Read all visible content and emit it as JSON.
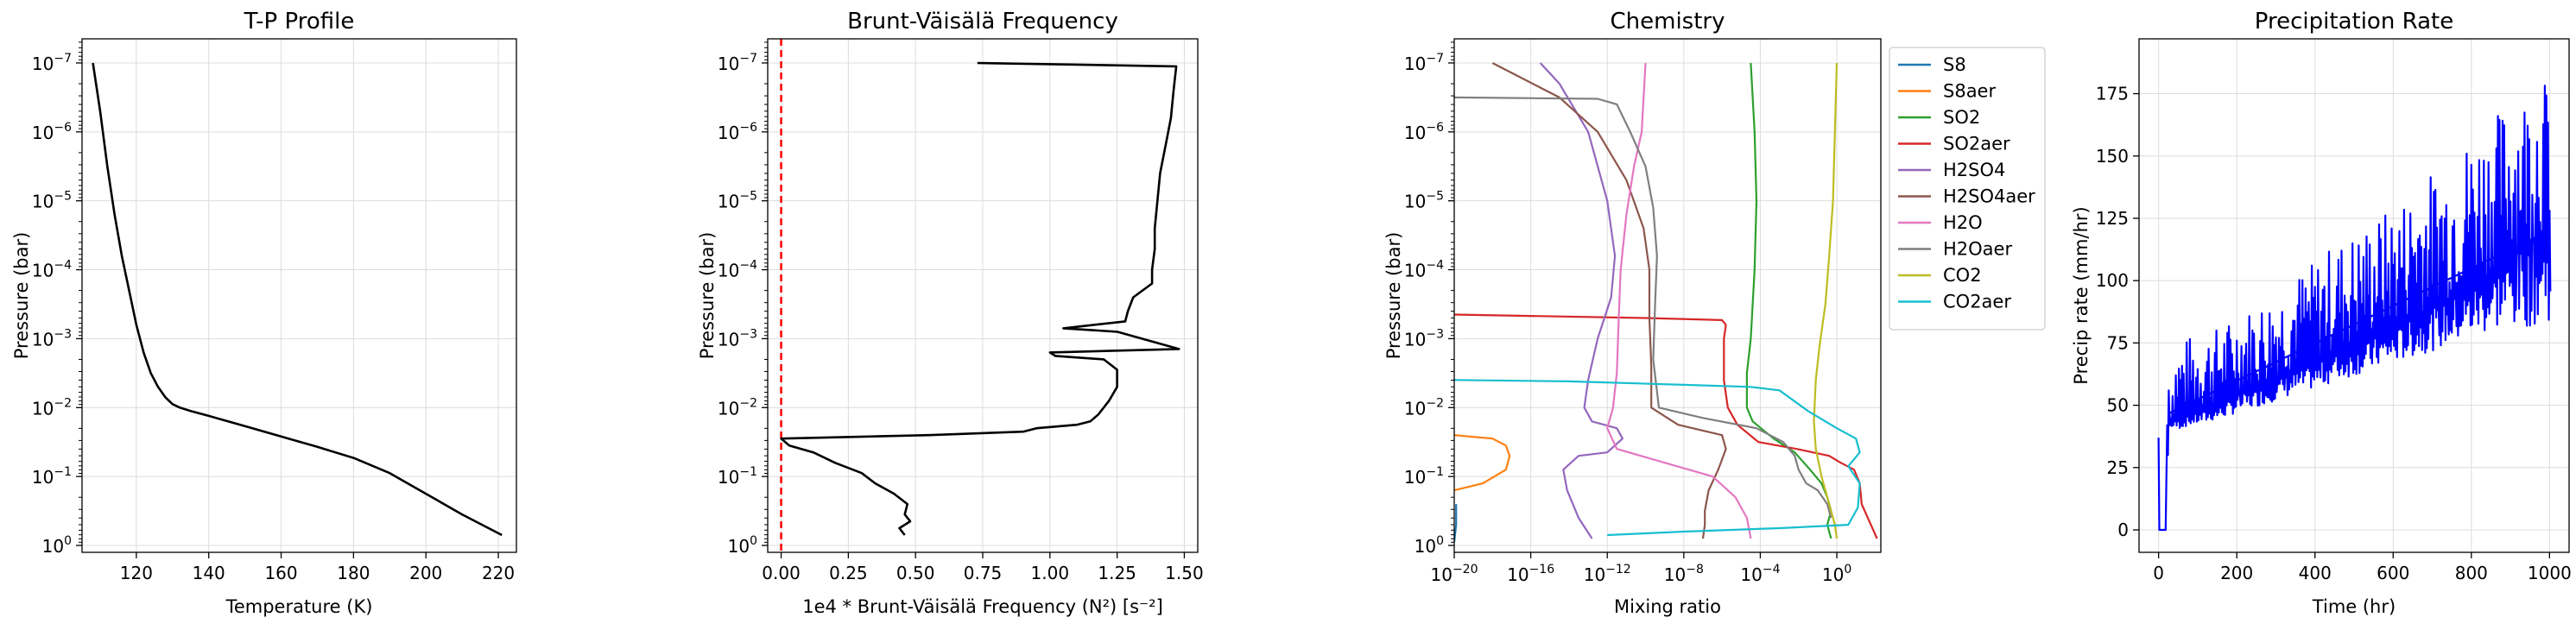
{
  "figure": {
    "background": "#ffffff",
    "grid_color": "#dcdcdc",
    "axis_color": "#000000"
  },
  "chart_data": [
    {
      "type": "line",
      "title": "T-P Profile",
      "xlabel": "Temperature (K)",
      "ylabel": "Pressure (bar)",
      "xscale": "linear",
      "yscale": "log",
      "y_inverted": true,
      "grid": true,
      "xlim": [
        105,
        225
      ],
      "ylim_log10": [
        0.1,
        -7.35
      ],
      "xticks": [
        {
          "v": 120,
          "label": "120"
        },
        {
          "v": 140,
          "label": "140"
        },
        {
          "v": 160,
          "label": "160"
        },
        {
          "v": 180,
          "label": "180"
        },
        {
          "v": 200,
          "label": "200"
        },
        {
          "v": 220,
          "label": "220"
        }
      ],
      "yticks": [
        {
          "v": 0,
          "base": "10",
          "exp": "0"
        },
        {
          "v": -1,
          "base": "10",
          "exp": "−1"
        },
        {
          "v": -2,
          "base": "10",
          "exp": "−2"
        },
        {
          "v": -3,
          "base": "10",
          "exp": "−3"
        },
        {
          "v": -4,
          "base": "10",
          "exp": "−4"
        },
        {
          "v": -5,
          "base": "10",
          "exp": "−5"
        },
        {
          "v": -6,
          "base": "10",
          "exp": "−6"
        },
        {
          "v": -7,
          "base": "10",
          "exp": "−7"
        }
      ],
      "series": [
        {
          "color": "#000000",
          "width": 2.6,
          "x": [
            108,
            110,
            112,
            114,
            116,
            118,
            120,
            122,
            124,
            126,
            128,
            130,
            132,
            135,
            140,
            150,
            160,
            170,
            180,
            190,
            200,
            210,
            221
          ],
          "y": [
            -7,
            -6.3,
            -5.5,
            -4.8,
            -4.2,
            -3.7,
            -3.2,
            -2.8,
            -2.5,
            -2.3,
            -2.15,
            -2.05,
            -2,
            -1.95,
            -1.88,
            -1.73,
            -1.58,
            -1.43,
            -1.27,
            -1.05,
            -0.75,
            -0.45,
            -0.15
          ]
        }
      ]
    },
    {
      "type": "line",
      "title": "Brunt-Väisälä Frequency",
      "xlabel": "1e4 * Brunt-Väisälä Frequency (N²) [s⁻²]",
      "ylabel": "Pressure (bar)",
      "xscale": "linear",
      "yscale": "log",
      "y_inverted": true,
      "grid": true,
      "xlim": [
        -0.05,
        1.55
      ],
      "ylim_log10": [
        0.1,
        -7.35
      ],
      "vline": {
        "x": 0,
        "color": "#ff0000",
        "dash": "8,5",
        "width": 2.5
      },
      "xticks": [
        {
          "v": 0,
          "label": "0.00"
        },
        {
          "v": 0.25,
          "label": "0.25"
        },
        {
          "v": 0.5,
          "label": "0.50"
        },
        {
          "v": 0.75,
          "label": "0.75"
        },
        {
          "v": 1.0,
          "label": "1.00"
        },
        {
          "v": 1.25,
          "label": "1.25"
        },
        {
          "v": 1.5,
          "label": "1.50"
        }
      ],
      "yticks": [
        {
          "v": 0,
          "base": "10",
          "exp": "0"
        },
        {
          "v": -1,
          "base": "10",
          "exp": "−1"
        },
        {
          "v": -2,
          "base": "10",
          "exp": "−2"
        },
        {
          "v": -3,
          "base": "10",
          "exp": "−3"
        },
        {
          "v": -4,
          "base": "10",
          "exp": "−4"
        },
        {
          "v": -5,
          "base": "10",
          "exp": "−5"
        },
        {
          "v": -6,
          "base": "10",
          "exp": "−6"
        },
        {
          "v": -7,
          "base": "10",
          "exp": "−7"
        }
      ],
      "series": [
        {
          "color": "#000000",
          "width": 2.6,
          "x": [
            0.73,
            1.47,
            1.46,
            1.45,
            1.43,
            1.41,
            1.4,
            1.39,
            1.39,
            1.38,
            1.38,
            1.31,
            1.29,
            1.28,
            1.05,
            1.25,
            1.48,
            1.0,
            1.02,
            1.2,
            1.25,
            1.25,
            1.22,
            1.18,
            1.15,
            1.1,
            0.95,
            0.9,
            0.55,
            0.0,
            0.03,
            0.12,
            0.2,
            0.3,
            0.35,
            0.42,
            0.47,
            0.46,
            0.48,
            0.44,
            0.46
          ],
          "y": [
            -7,
            -6.95,
            -6.6,
            -6.2,
            -5.8,
            -5.4,
            -5.0,
            -4.6,
            -4.3,
            -4.0,
            -3.8,
            -3.6,
            -3.4,
            -3.25,
            -3.15,
            -3.1,
            -2.85,
            -2.8,
            -2.75,
            -2.7,
            -2.55,
            -2.3,
            -2.1,
            -1.9,
            -1.8,
            -1.75,
            -1.7,
            -1.65,
            -1.6,
            -1.55,
            -1.45,
            -1.35,
            -1.2,
            -1.05,
            -0.9,
            -0.75,
            -0.6,
            -0.45,
            -0.35,
            -0.25,
            -0.15
          ]
        }
      ]
    },
    {
      "type": "line",
      "title": "Chemistry",
      "xlabel": "Mixing ratio",
      "ylabel": "Pressure (bar)",
      "xscale": "log",
      "yscale": "log",
      "y_inverted": true,
      "grid": true,
      "legend": "outside-right",
      "xlim_log10": [
        -20,
        2.3
      ],
      "ylim_log10": [
        0.1,
        -7.35
      ],
      "xticks": [
        {
          "v": -20,
          "base": "10",
          "exp": "−20"
        },
        {
          "v": -16,
          "base": "10",
          "exp": "−16"
        },
        {
          "v": -12,
          "base": "10",
          "exp": "−12"
        },
        {
          "v": -8,
          "base": "10",
          "exp": "−8"
        },
        {
          "v": -4,
          "base": "10",
          "exp": "−4"
        },
        {
          "v": 0,
          "base": "10",
          "exp": "0"
        }
      ],
      "yticks": [
        {
          "v": 0,
          "base": "10",
          "exp": "0"
        },
        {
          "v": -1,
          "base": "10",
          "exp": "−1"
        },
        {
          "v": -2,
          "base": "10",
          "exp": "−2"
        },
        {
          "v": -3,
          "base": "10",
          "exp": "−3"
        },
        {
          "v": -4,
          "base": "10",
          "exp": "−4"
        },
        {
          "v": -5,
          "base": "10",
          "exp": "−5"
        },
        {
          "v": -6,
          "base": "10",
          "exp": "−6"
        },
        {
          "v": -7,
          "base": "10",
          "exp": "−7"
        }
      ],
      "series": [
        {
          "name": "S8",
          "color": "#1f77b4",
          "x": [
            -20,
            -19.9,
            -19.9
          ],
          "y": [
            -0.05,
            -0.3,
            -0.6
          ]
        },
        {
          "name": "S8aer",
          "color": "#ff7f0e",
          "x": [
            -20,
            -18,
            -17.3,
            -17.1,
            -17.3,
            -18.5,
            -20
          ],
          "y": [
            -1.6,
            -1.55,
            -1.45,
            -1.3,
            -1.1,
            -0.9,
            -0.8
          ]
        },
        {
          "name": "SO2",
          "color": "#2ca02c",
          "x": [
            -4.5,
            -4.3,
            -4.2,
            -4.3,
            -4.5,
            -4.7,
            -4.7,
            -4.4,
            -3.3,
            -2.2,
            -1.4,
            -0.8,
            -0.5,
            -0.3,
            -0.5,
            -0.3
          ],
          "y": [
            -7,
            -6,
            -5,
            -4,
            -3,
            -2.5,
            -2,
            -1.8,
            -1.55,
            -1.35,
            -1.1,
            -0.9,
            -0.7,
            -0.5,
            -0.3,
            -0.1
          ]
        },
        {
          "name": "SO2aer",
          "color": "#d62728",
          "x": [
            -20,
            -10,
            -6,
            -5.8,
            -5.9,
            -5.9,
            -5.7,
            -5.2,
            -4.1,
            -2.1,
            -0.4,
            0.2,
            0.9,
            1.2,
            1.3,
            1.7,
            2.1
          ],
          "y": [
            -3.35,
            -3.3,
            -3.27,
            -3.2,
            -3,
            -2.4,
            -2.0,
            -1.75,
            -1.5,
            -1.4,
            -1.3,
            -1.2,
            -1.1,
            -0.9,
            -0.6,
            -0.35,
            -0.1
          ]
        },
        {
          "name": "H2SO4",
          "color": "#9467bd",
          "x": [
            -15.5,
            -14.5,
            -13,
            -12,
            -11.6,
            -11.8,
            -12.5,
            -13,
            -13.2,
            -12.8,
            -11.5,
            -11.2,
            -12,
            -13.5,
            -14.3,
            -14.1,
            -13.5,
            -12.8
          ],
          "y": [
            -7,
            -6.7,
            -6,
            -5,
            -4.2,
            -3.6,
            -3,
            -2.4,
            -2.0,
            -1.8,
            -1.7,
            -1.55,
            -1.35,
            -1.3,
            -1.1,
            -0.8,
            -0.4,
            -0.1
          ]
        },
        {
          "name": "H2SO4aer",
          "color": "#8c564b",
          "x": [
            -18,
            -14.5,
            -12.5,
            -11,
            -10.1,
            -9.8,
            -9.8,
            -9.7,
            -9.7,
            -8.3,
            -6,
            -5.8,
            -6.2,
            -6.7,
            -6.9,
            -6.9,
            -7
          ],
          "y": [
            -7,
            -6.5,
            -6,
            -5.3,
            -4.6,
            -4,
            -3.3,
            -2.6,
            -2.0,
            -1.75,
            -1.6,
            -1.4,
            -1.1,
            -0.8,
            -0.5,
            -0.3,
            -0.1
          ]
        },
        {
          "name": "H2O",
          "color": "#e377c2",
          "x": [
            -10,
            -10.1,
            -10.2,
            -10.6,
            -11,
            -11.3,
            -11.4,
            -11.5,
            -11.7,
            -12,
            -11.5,
            -9,
            -6.5,
            -5.3,
            -4.7,
            -4.5
          ],
          "y": [
            -7,
            -6.5,
            -6,
            -5.5,
            -4.8,
            -4,
            -3.3,
            -2.5,
            -2.0,
            -1.7,
            -1.4,
            -1.2,
            -1.0,
            -0.7,
            -0.4,
            -0.1
          ]
        },
        {
          "name": "H2Oaer",
          "color": "#7f7f7f",
          "x": [
            -20,
            -12.5,
            -11.5,
            -10.8,
            -10,
            -9.6,
            -9.4,
            -9.5,
            -9.6,
            -9.3,
            -7,
            -4.2,
            -2.8,
            -2.2,
            -2.0,
            -1.6,
            -1.0,
            -0.5,
            -0.3
          ],
          "y": [
            -6.5,
            -6.48,
            -6.4,
            -6.0,
            -5.5,
            -4.9,
            -4.2,
            -3.5,
            -2.7,
            -2.0,
            -1.85,
            -1.7,
            -1.5,
            -1.3,
            -1.1,
            -0.9,
            -0.8,
            -0.6,
            -0.4
          ]
        },
        {
          "name": "CO2",
          "color": "#bcbd22",
          "x": [
            0,
            -0.1,
            -0.2,
            -0.4,
            -0.6,
            -0.9,
            -1.1,
            -1.2,
            -1.1,
            -0.8,
            -0.4,
            -0.1,
            0
          ],
          "y": [
            -7,
            -6,
            -5,
            -4.2,
            -3.5,
            -2.9,
            -2.4,
            -1.8,
            -1.4,
            -1.0,
            -0.6,
            -0.3,
            -0.1
          ]
        },
        {
          "name": "CO2aer",
          "color": "#17becf",
          "x": [
            -20,
            -14,
            -8,
            -4.5,
            -3,
            -1.5,
            0,
            1.0,
            1.2,
            0.6,
            1.2,
            1.1,
            0.6,
            -3,
            -8,
            -12
          ],
          "y": [
            -2.4,
            -2.38,
            -2.33,
            -2.3,
            -2.25,
            -1.95,
            -1.7,
            -1.55,
            -1.35,
            -1.15,
            -0.9,
            -0.55,
            -0.3,
            -0.25,
            -0.2,
            -0.15
          ]
        }
      ]
    },
    {
      "type": "line",
      "title": "Precipitation Rate",
      "xlabel": "Time (hr)",
      "ylabel": "Precip rate (mm/hr)",
      "xscale": "linear",
      "yscale": "linear",
      "grid": true,
      "xlim": [
        -50,
        1050
      ],
      "ylim": [
        -9,
        197
      ],
      "xticks": [
        {
          "v": 0,
          "label": "0"
        },
        {
          "v": 200,
          "label": "200"
        },
        {
          "v": 400,
          "label": "400"
        },
        {
          "v": 600,
          "label": "600"
        },
        {
          "v": 800,
          "label": "800"
        },
        {
          "v": 1000,
          "label": "1000"
        }
      ],
      "yticks": [
        {
          "v": 0,
          "label": "0"
        },
        {
          "v": 25,
          "label": "25"
        },
        {
          "v": 50,
          "label": "50"
        },
        {
          "v": 75,
          "label": "75"
        },
        {
          "v": 100,
          "label": "100"
        },
        {
          "v": 125,
          "label": "125"
        },
        {
          "v": 150,
          "label": "150"
        },
        {
          "v": 175,
          "label": "175"
        }
      ],
      "series": [
        {
          "color": "#0000ff",
          "width": 2.2,
          "x": [
            0,
            2,
            4,
            10,
            18,
            22,
            24,
            26,
            28,
            40,
            80,
            120,
            160,
            200,
            240,
            280,
            320,
            360,
            400,
            440,
            480,
            520,
            560,
            600,
            640,
            680,
            720,
            760,
            800,
            840,
            880,
            920,
            960,
            1000
          ],
          "y": [
            37,
            0,
            0,
            0,
            0,
            42,
            30,
            56,
            42,
            44,
            46,
            48,
            50,
            54,
            56,
            58,
            62,
            64,
            66,
            70,
            72,
            74,
            78,
            80,
            84,
            88,
            90,
            94,
            98,
            102,
            108,
            112,
            116,
            120
          ],
          "y_max": [
            37,
            0,
            0,
            0,
            0,
            42,
            30,
            56,
            52,
            74,
            78,
            80,
            82,
            86,
            90,
            94,
            98,
            104,
            108,
            114,
            118,
            122,
            126,
            130,
            136,
            142,
            146,
            152,
            160,
            164,
            170,
            176,
            180,
            182
          ],
          "y_min": [
            37,
            0,
            0,
            0,
            0,
            42,
            30,
            56,
            42,
            40,
            42,
            43,
            45,
            47,
            49,
            51,
            53,
            55,
            57,
            59,
            61,
            63,
            65,
            67,
            69,
            71,
            73,
            75,
            77,
            79,
            81,
            81,
            82,
            84
          ]
        }
      ]
    }
  ],
  "legend": {
    "entries": [
      {
        "name": "S8",
        "color": "#1f77b4"
      },
      {
        "name": "S8aer",
        "color": "#ff7f0e"
      },
      {
        "name": "SO2",
        "color": "#2ca02c"
      },
      {
        "name": "SO2aer",
        "color": "#d62728"
      },
      {
        "name": "H2SO4",
        "color": "#9467bd"
      },
      {
        "name": "H2SO4aer",
        "color": "#8c564b"
      },
      {
        "name": "H2O",
        "color": "#e377c2"
      },
      {
        "name": "H2Oaer",
        "color": "#7f7f7f"
      },
      {
        "name": "CO2",
        "color": "#bcbd22"
      },
      {
        "name": "CO2aer",
        "color": "#17becf"
      }
    ]
  }
}
